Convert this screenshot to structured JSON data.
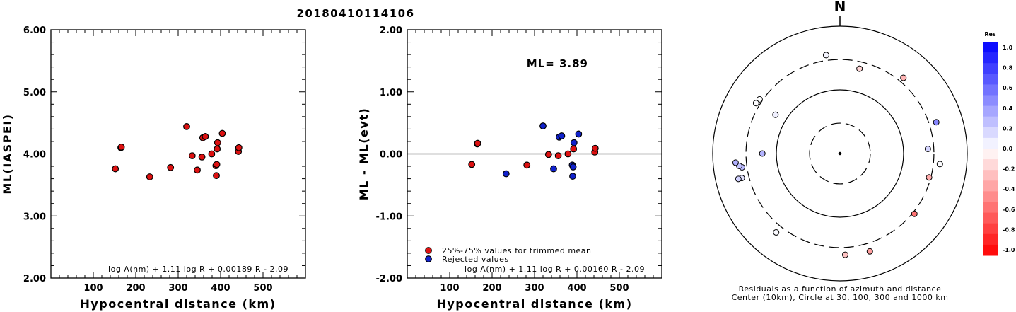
{
  "title": "20180410114106",
  "colors": {
    "retained": "#dd1111",
    "rejected": "#1122cc",
    "frame": "#000000"
  },
  "chart_data": [
    {
      "type": "scatter",
      "xlabel": "Hypocentral distance (km)",
      "ylabel": "ML(IASPEI)",
      "xlim": [
        0,
        600
      ],
      "ylim": [
        2.0,
        6.0
      ],
      "xticks": [
        "100",
        "200",
        "300",
        "400",
        "500"
      ],
      "yticks": [
        "2.00",
        "3.00",
        "4.00",
        "5.00",
        "6.00"
      ],
      "formula": "log A(nm) + 1.11 log R + 0.00189 R - 2.09",
      "points": [
        {
          "x": 152,
          "y": 3.76
        },
        {
          "x": 165,
          "y": 4.1
        },
        {
          "x": 166,
          "y": 4.11
        },
        {
          "x": 233,
          "y": 3.63
        },
        {
          "x": 282,
          "y": 3.78
        },
        {
          "x": 320,
          "y": 4.44
        },
        {
          "x": 333,
          "y": 3.97
        },
        {
          "x": 345,
          "y": 3.74
        },
        {
          "x": 356,
          "y": 3.95
        },
        {
          "x": 358,
          "y": 4.26
        },
        {
          "x": 364,
          "y": 4.28
        },
        {
          "x": 379,
          "y": 4.0
        },
        {
          "x": 389,
          "y": 3.81
        },
        {
          "x": 390,
          "y": 3.65
        },
        {
          "x": 391,
          "y": 3.83
        },
        {
          "x": 392,
          "y": 4.08
        },
        {
          "x": 393,
          "y": 4.18
        },
        {
          "x": 404,
          "y": 4.33
        },
        {
          "x": 442,
          "y": 4.04
        },
        {
          "x": 443,
          "y": 4.1
        }
      ]
    },
    {
      "type": "scatter",
      "xlabel": "Hypocentral distance (km)",
      "ylabel": "ML - ML(evt)",
      "xlim": [
        0,
        600
      ],
      "ylim": [
        -2.0,
        2.0
      ],
      "xticks": [
        "100",
        "200",
        "300",
        "400",
        "500"
      ],
      "yticks": [
        "-2.00",
        "-1.00",
        "0.00",
        "1.00",
        "2.00"
      ],
      "annotation": "ML= 3.89",
      "reference_line_y": 0,
      "formula": "log A(nm) + 1.11 log R + 0.00160 R - 2.09",
      "legend": [
        {
          "label": "25%-75% values for trimmed mean",
          "series": "retained"
        },
        {
          "label": "Rejected values",
          "series": "rejected"
        }
      ],
      "series": [
        {
          "name": "25%-75% values for trimmed mean",
          "points": [
            {
              "x": 152,
              "y": -0.17
            },
            {
              "x": 165,
              "y": 0.16
            },
            {
              "x": 166,
              "y": 0.17
            },
            {
              "x": 282,
              "y": -0.18
            },
            {
              "x": 333,
              "y": -0.01
            },
            {
              "x": 356,
              "y": -0.03
            },
            {
              "x": 379,
              "y": 0.0
            },
            {
              "x": 392,
              "y": 0.08
            },
            {
              "x": 442,
              "y": 0.03
            },
            {
              "x": 443,
              "y": 0.09
            }
          ]
        },
        {
          "name": "Rejected values",
          "points": [
            {
              "x": 233,
              "y": -0.32
            },
            {
              "x": 320,
              "y": 0.45
            },
            {
              "x": 345,
              "y": -0.24
            },
            {
              "x": 358,
              "y": 0.27
            },
            {
              "x": 364,
              "y": 0.29
            },
            {
              "x": 389,
              "y": -0.18
            },
            {
              "x": 390,
              "y": -0.36
            },
            {
              "x": 391,
              "y": -0.21
            },
            {
              "x": 393,
              "y": 0.18
            },
            {
              "x": 404,
              "y": 0.32
            }
          ]
        }
      ]
    },
    {
      "type": "scatter",
      "subtype": "polar",
      "north_label": "N",
      "caption_line1": "Residuals as a function of azimuth and distance",
      "caption_line2": "Center (10km), Circle at 30, 100, 300 and 1000 km",
      "rings_km": [
        30,
        100,
        300,
        1000
      ],
      "ring_styles": [
        "dashed",
        "solid",
        "dashed",
        "solid"
      ],
      "colorbar": {
        "title": "Res",
        "range": [
          -1.0,
          1.0
        ],
        "ticks": [
          "1.0",
          "0.8",
          "0.6",
          "0.4",
          "0.2",
          "0.0",
          "-0.2",
          "-0.4",
          "-0.6",
          "-0.8",
          "-1.0"
        ]
      },
      "points": [
        {
          "azimuth": 352,
          "distance": 364,
          "residual": 0.04
        },
        {
          "azimuth": 304,
          "distance": 333,
          "residual": 0.0
        },
        {
          "azimuth": 301,
          "distance": 345,
          "residual": 0.01
        },
        {
          "azimuth": 13,
          "distance": 233,
          "residual": -0.16
        },
        {
          "azimuth": 40,
          "distance": 356,
          "residual": -0.29
        },
        {
          "azimuth": 72,
          "distance": 390,
          "residual": 0.47
        },
        {
          "azimuth": 87,
          "distance": 242,
          "residual": 0.17
        },
        {
          "azimuth": 96,
          "distance": 379,
          "residual": 0.01
        },
        {
          "azimuth": 105,
          "distance": 282,
          "residual": -0.33
        },
        {
          "azimuth": 129,
          "distance": 320,
          "residual": -0.55
        },
        {
          "azimuth": 163,
          "distance": 404,
          "residual": -0.38
        },
        {
          "azimuth": 177,
          "distance": 391,
          "residual": -0.24
        },
        {
          "azimuth": 219,
          "distance": 392,
          "residual": 0.02
        },
        {
          "azimuth": 256,
          "distance": 389,
          "residual": 0.11
        },
        {
          "azimuth": 256,
          "distance": 442,
          "residual": 0.18
        },
        {
          "azimuth": 262,
          "distance": 358,
          "residual": 0.27
        },
        {
          "azimuth": 263,
          "distance": 393,
          "residual": 0.24
        },
        {
          "azimuth": 265,
          "distance": 443,
          "residual": 0.31
        },
        {
          "azimuth": 270,
          "distance": 166,
          "residual": 0.3
        },
        {
          "azimuth": 301,
          "distance": 152,
          "residual": 0.06
        }
      ]
    }
  ]
}
